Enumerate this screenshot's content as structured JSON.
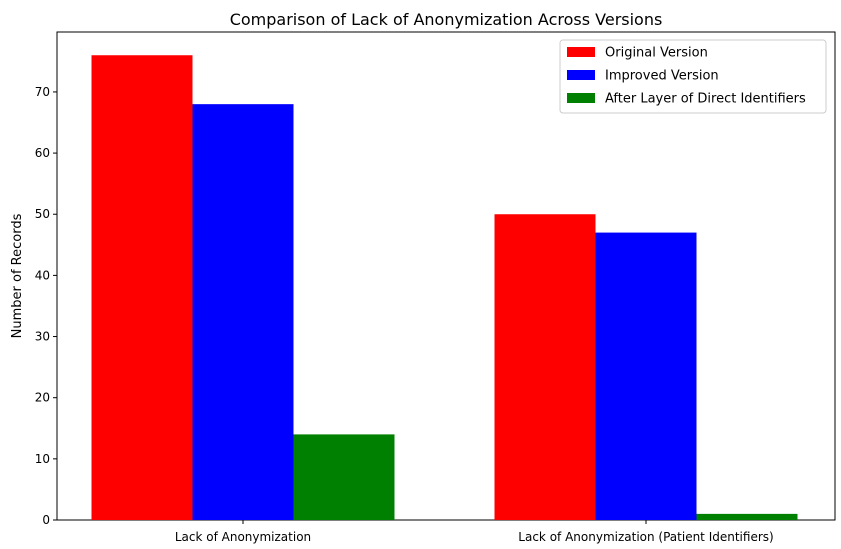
{
  "chart_data": {
    "type": "bar",
    "title": "Comparison of Lack of Anonymization Across Versions",
    "xlabel": "",
    "ylabel": "Number of Records",
    "categories": [
      "Lack of Anonymization",
      "Lack of Anonymization (Patient Identifiers)"
    ],
    "series": [
      {
        "name": "Original Version",
        "color": "#ff0000",
        "values": [
          76,
          50
        ]
      },
      {
        "name": "Improved Version",
        "color": "#0000ff",
        "values": [
          68,
          47
        ]
      },
      {
        "name": "After Layer of Direct Identifiers",
        "color": "#008000",
        "values": [
          14,
          1
        ]
      }
    ],
    "ylim": [
      0,
      79.8
    ],
    "yticks": [
      0,
      10,
      20,
      30,
      40,
      50,
      60,
      70
    ],
    "grid": false,
    "legend_position": "top-right"
  }
}
